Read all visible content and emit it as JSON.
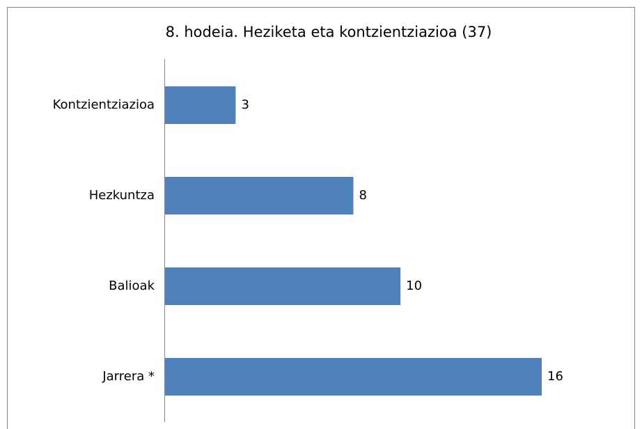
{
  "chart_data": {
    "type": "bar",
    "orientation": "horizontal",
    "title": "8. hodeia. Heziketa eta kontzientziazioa (37)",
    "categories": [
      "Kontzientziazioa",
      "Hezkuntza",
      "Balioak",
      "Jarrera *"
    ],
    "values": [
      3,
      8,
      10,
      16
    ],
    "color": "#4f81bd"
  }
}
